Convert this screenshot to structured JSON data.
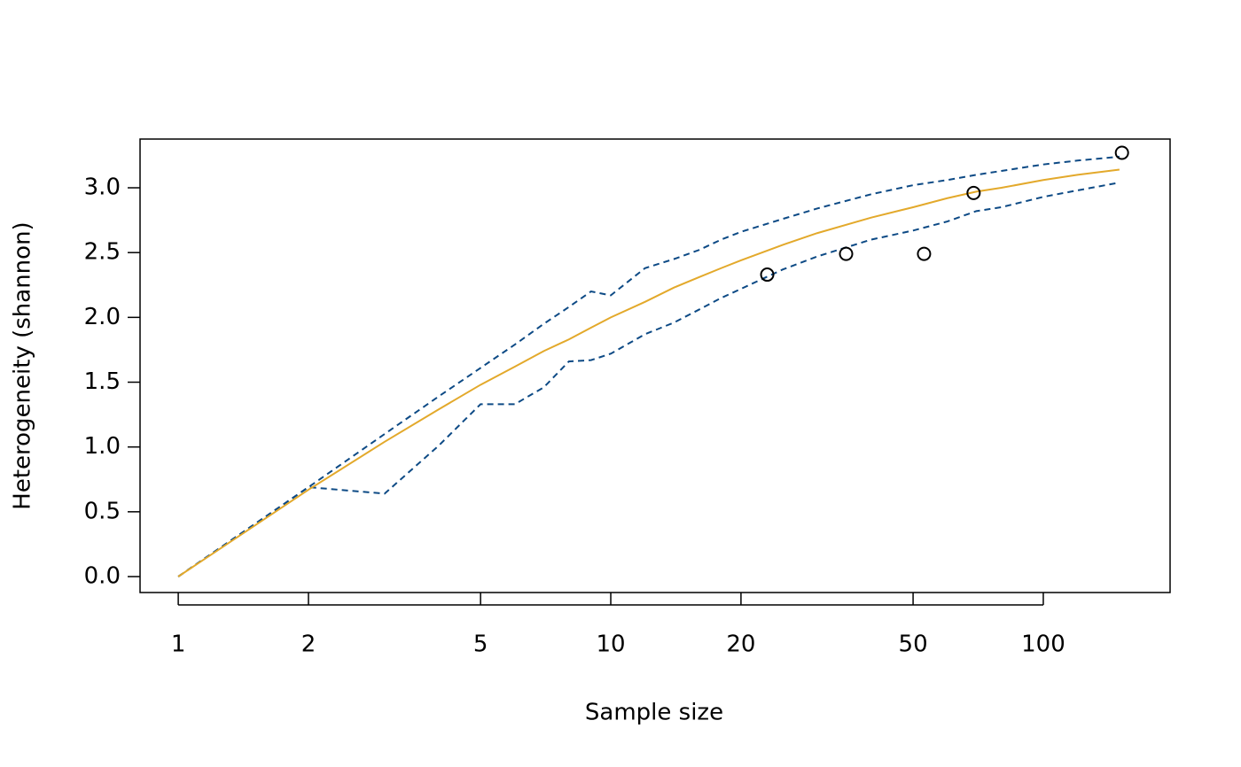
{
  "chart_data": {
    "type": "line",
    "x_label": "Sample size",
    "y_label": "Heterogeneity (shannon)",
    "xscale": "log",
    "xlim": [
      0.816,
      196.4
    ],
    "ylim": [
      -0.123,
      3.376
    ],
    "xticks": [
      1,
      2,
      5,
      10,
      20,
      50,
      100
    ],
    "yticks": [
      {
        "value": 0,
        "label": "0.0"
      },
      0.5,
      {
        "value": 1,
        "label": "1.0"
      },
      1.5,
      {
        "value": 2,
        "label": "2.0"
      },
      2.5,
      {
        "value": 3,
        "label": "3.0"
      }
    ],
    "x": [
      1,
      2,
      3,
      4,
      5,
      6,
      7,
      8,
      9,
      10,
      12,
      14,
      16,
      18,
      20,
      25,
      30,
      40,
      50,
      60,
      70,
      80,
      100,
      120,
      150
    ],
    "series": [
      {
        "color": "#0d4a85",
        "dashed": true,
        "values": [
          0,
          0.69,
          1.1,
          1.39,
          1.61,
          1.79,
          1.95,
          2.08,
          2.2,
          2.17,
          2.38,
          2.45,
          2.52,
          2.6,
          2.66,
          2.76,
          2.84,
          2.95,
          3.02,
          3.06,
          3.1,
          3.13,
          3.18,
          3.21,
          3.24
        ]
      },
      {
        "color": "#0d4a85",
        "dashed": true,
        "values": [
          0,
          0.69,
          0.64,
          1.01,
          1.33,
          1.33,
          1.46,
          1.66,
          1.67,
          1.72,
          1.87,
          1.96,
          2.06,
          2.15,
          2.22,
          2.37,
          2.47,
          2.6,
          2.67,
          2.74,
          2.82,
          2.85,
          2.93,
          2.98,
          3.04
        ]
      },
      {
        "color": "#e3a92b",
        "dashed": false,
        "values": [
          0,
          0.67,
          1.04,
          1.29,
          1.48,
          1.62,
          1.74,
          1.83,
          1.92,
          2.0,
          2.12,
          2.23,
          2.31,
          2.38,
          2.44,
          2.56,
          2.65,
          2.77,
          2.85,
          2.92,
          2.97,
          3.0,
          3.06,
          3.1,
          3.14
        ]
      }
    ],
    "points": {
      "color": "#000000",
      "x": [
        23,
        35,
        53,
        69,
        152
      ],
      "values": [
        2.33,
        2.49,
        2.49,
        2.96,
        3.27
      ]
    }
  }
}
